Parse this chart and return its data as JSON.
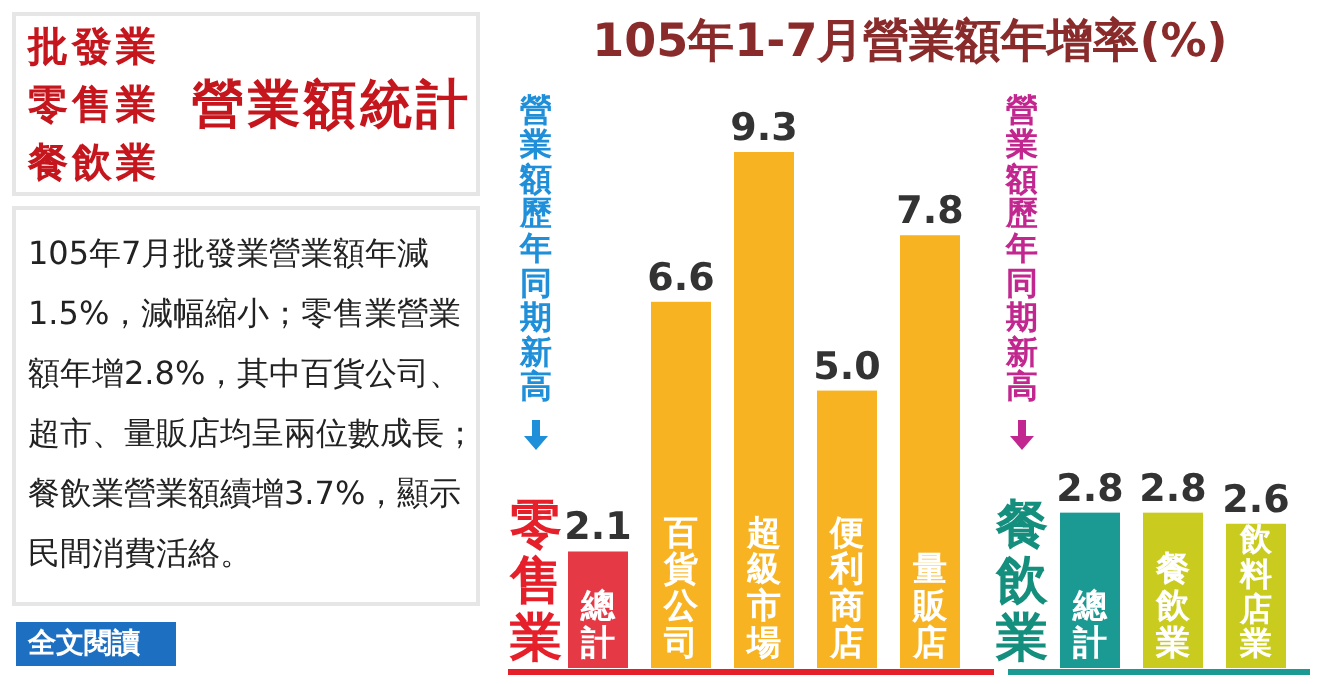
{
  "chart_data": {
    "type": "bar",
    "title": "105年1-7月營業額年增率(%)",
    "categories": [
      "總計",
      "百貨公司",
      "超級市場",
      "便利商店",
      "量販店",
      "總計",
      "餐飲業",
      "飲料店業"
    ],
    "values": [
      2.1,
      6.6,
      9.3,
      5.0,
      7.8,
      2.8,
      2.8,
      2.6
    ],
    "value_labels": [
      "2.1",
      "6.6",
      "9.3",
      "5.0",
      "7.8",
      "2.8",
      "2.8",
      "2.6"
    ],
    "colors": [
      "#e63946",
      "#f7b322",
      "#f7b322",
      "#f7b322",
      "#f7b322",
      "#1a9a92",
      "#c9cc1f",
      "#c9cc1f"
    ],
    "annotations": [
      "批發業",
      "零售業",
      "餐飲業",
      "營業額統計",
      "105年7月批發業營業額年減1.5%，減幅縮小；零售業營業額年增2.8%，其中百貨公司、超市、量販店均呈兩位數成長；餐飲業營業額續增3.7%，顯示民間消費活絡。",
      "全文閱讀",
      "營業額歷年同期新高",
      "零售業",
      "營業額歷年同期新高",
      "餐飲業"
    ]
  }
}
